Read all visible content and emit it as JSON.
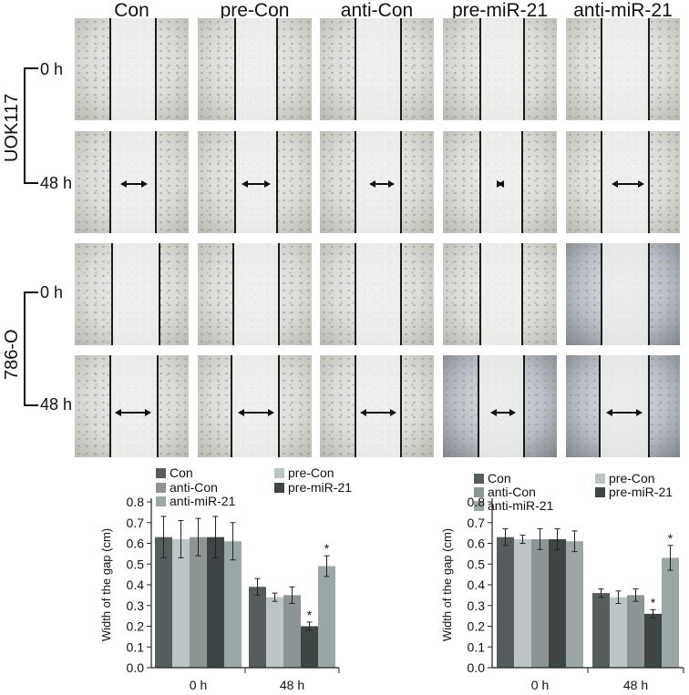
{
  "columns": [
    "Con",
    "pre-Con",
    "anti-Con",
    "pre-miR-21",
    "anti-miR-21"
  ],
  "cell_lines": [
    "UOK117",
    "786-O"
  ],
  "timepoints": [
    "0 h",
    "48 h"
  ],
  "colors": {
    "Con": "#555d5d",
    "pre-Con": "#bcc5c5",
    "anti-Con": "#8c9494",
    "pre-miR-21": "#3f4545",
    "anti-miR-21": "#9ba6a6"
  },
  "chart_data": [
    {
      "type": "bar",
      "categories": [
        "0 h",
        "48 h"
      ],
      "ylabel": "Width of the gap (cm)",
      "ylim": [
        0,
        0.8
      ],
      "yticks": [
        "0.0",
        "0.1",
        "0.2",
        "0.3",
        "0.4",
        "0.5",
        "0.6",
        "0.7",
        "0.8"
      ],
      "series": [
        {
          "name": "Con",
          "values": [
            0.63,
            0.39
          ],
          "errors": [
            0.1,
            0.04
          ]
        },
        {
          "name": "pre-Con",
          "values": [
            0.62,
            0.34
          ],
          "errors": [
            0.09,
            0.02
          ]
        },
        {
          "name": "anti-Con",
          "values": [
            0.63,
            0.35
          ],
          "errors": [
            0.09,
            0.04
          ]
        },
        {
          "name": "pre-miR-21",
          "values": [
            0.63,
            0.2
          ],
          "errors": [
            0.1,
            0.02
          ]
        },
        {
          "name": "anti-miR-21",
          "values": [
            0.61,
            0.49
          ],
          "errors": [
            0.09,
            0.05
          ]
        }
      ],
      "annotations": [
        {
          "category": "48 h",
          "series": "pre-miR-21",
          "text": "*"
        },
        {
          "category": "48 h",
          "series": "anti-miR-21",
          "text": "*"
        }
      ]
    },
    {
      "type": "bar",
      "categories": [
        "0 h",
        "48 h"
      ],
      "ylabel": "Width of the gap (cm)",
      "ylim": [
        0,
        0.8
      ],
      "yticks": [
        "0.0",
        "0.1",
        "0.2",
        "0.3",
        "0.4",
        "0.5",
        "0.6",
        "0.7",
        "0.8"
      ],
      "series": [
        {
          "name": "Con",
          "values": [
            0.63,
            0.36
          ],
          "errors": [
            0.04,
            0.02
          ]
        },
        {
          "name": "pre-Con",
          "values": [
            0.62,
            0.34
          ],
          "errors": [
            0.02,
            0.03
          ]
        },
        {
          "name": "anti-Con",
          "values": [
            0.62,
            0.35
          ],
          "errors": [
            0.05,
            0.03
          ]
        },
        {
          "name": "pre-miR-21",
          "values": [
            0.62,
            0.26
          ],
          "errors": [
            0.05,
            0.02
          ]
        },
        {
          "name": "anti-miR-21",
          "values": [
            0.61,
            0.53
          ],
          "errors": [
            0.05,
            0.06
          ]
        }
      ],
      "annotations": [
        {
          "category": "48 h",
          "series": "pre-miR-21",
          "text": "*"
        },
        {
          "category": "48 h",
          "series": "anti-miR-21",
          "text": "*"
        }
      ]
    }
  ]
}
